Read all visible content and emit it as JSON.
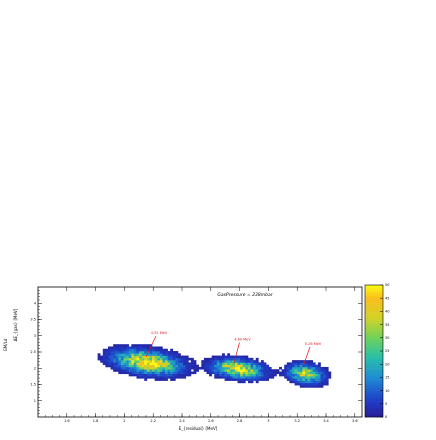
{
  "chart_data": {
    "type": "heatmap",
    "title": "GasPressure = 238mbar",
    "xlabel": "E_{residual} [MeV]",
    "ylabel": "ΔE_{gas} [MeV]",
    "rotated_margin_label": "GM/Ld",
    "xlim": [
      1.4,
      3.65
    ],
    "ylim": [
      0.5,
      4.5
    ],
    "x_ticks": [
      "1.6",
      "1.8",
      "2",
      "2.2",
      "2.4",
      "2.6",
      "2.8",
      "3",
      "3.2",
      "3.4",
      "3.6"
    ],
    "y_ticks": [
      "1",
      "1.5",
      "2",
      "2.5",
      "3",
      "3.5",
      "4"
    ],
    "colorbar": {
      "min": 0,
      "max": 50,
      "ticks": [
        "0",
        "5",
        "10",
        "15",
        "20",
        "25",
        "30",
        "35",
        "40",
        "45",
        "50"
      ]
    },
    "clusters": [
      {
        "x": 2.15,
        "y": 2.15,
        "peak": 48,
        "sx": 0.13,
        "sy": 0.2,
        "tilt": -1.1
      },
      {
        "x": 2.78,
        "y": 1.95,
        "peak": 44,
        "sx": 0.1,
        "sy": 0.16,
        "tilt": -0.9
      },
      {
        "x": 3.25,
        "y": 1.8,
        "peak": 36,
        "sx": 0.07,
        "sy": 0.17,
        "tilt": -1.0
      }
    ],
    "annotations": [
      {
        "text": "4.32 MeV",
        "x": 2.24,
        "y": 3.05,
        "to_x": 2.15,
        "to_y": 2.35
      },
      {
        "text": "4.69 MeV",
        "x": 2.82,
        "y": 2.85,
        "to_x": 2.76,
        "to_y": 2.15
      },
      {
        "text": "5.26 MeV",
        "x": 3.31,
        "y": 2.72,
        "to_x": 3.24,
        "to_y": 2.05
      }
    ],
    "grid": false,
    "colors": {
      "annotation": "#e8141e"
    }
  }
}
